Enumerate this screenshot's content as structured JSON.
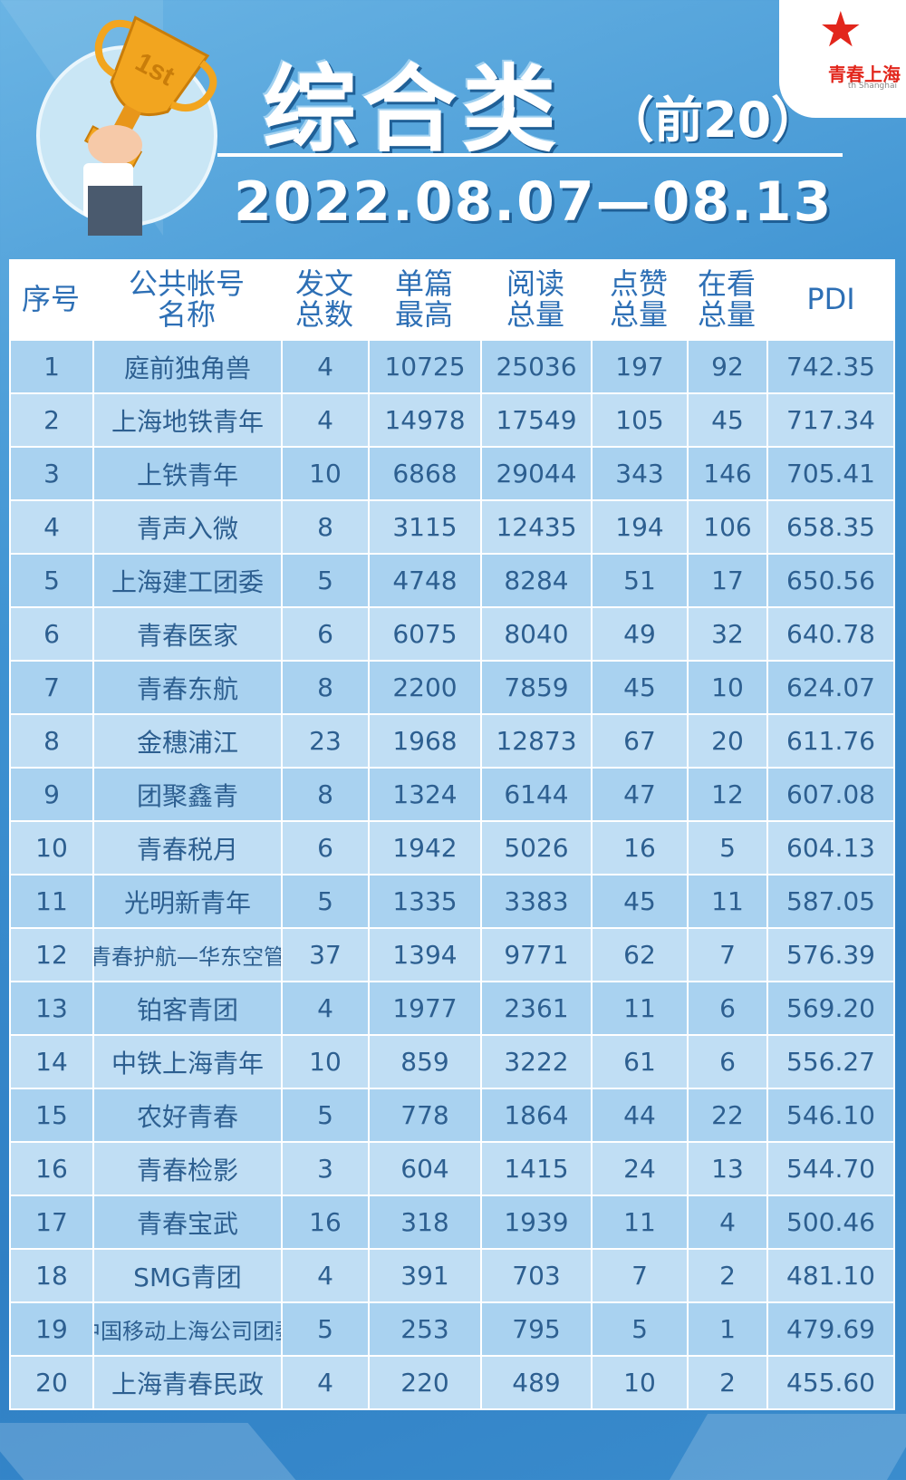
{
  "header": {
    "title": "综合类",
    "subtitle": "（前20）",
    "date_range": "2022.08.07—08.13",
    "trophy_label": "1st",
    "logo_text": "青春上海",
    "logo_sub": "th Shanghai"
  },
  "table": {
    "headers": [
      "序号",
      "公共帐号名称",
      "发文总数",
      "单篇最高",
      "阅读总量",
      "点赞总量",
      "在看总量",
      "PDI"
    ],
    "header_lines": [
      [
        "序号"
      ],
      [
        "公共帐号",
        "名称"
      ],
      [
        "发文",
        "总数"
      ],
      [
        "单篇",
        "最高"
      ],
      [
        "阅读",
        "总量"
      ],
      [
        "点赞",
        "总量"
      ],
      [
        "在看",
        "总量"
      ],
      [
        "PDI"
      ]
    ],
    "rows": [
      [
        "1",
        "庭前独角兽",
        "4",
        "10725",
        "25036",
        "197",
        "92",
        "742.35"
      ],
      [
        "2",
        "上海地铁青年",
        "4",
        "14978",
        "17549",
        "105",
        "45",
        "717.34"
      ],
      [
        "3",
        "上铁青年",
        "10",
        "6868",
        "29044",
        "343",
        "146",
        "705.41"
      ],
      [
        "4",
        "青声入微",
        "8",
        "3115",
        "12435",
        "194",
        "106",
        "658.35"
      ],
      [
        "5",
        "上海建工团委",
        "5",
        "4748",
        "8284",
        "51",
        "17",
        "650.56"
      ],
      [
        "6",
        "青春医家",
        "6",
        "6075",
        "8040",
        "49",
        "32",
        "640.78"
      ],
      [
        "7",
        "青春东航",
        "8",
        "2200",
        "7859",
        "45",
        "10",
        "624.07"
      ],
      [
        "8",
        "金穗浦江",
        "23",
        "1968",
        "12873",
        "67",
        "20",
        "611.76"
      ],
      [
        "9",
        "团聚鑫青",
        "8",
        "1324",
        "6144",
        "47",
        "12",
        "607.08"
      ],
      [
        "10",
        "青春税月",
        "6",
        "1942",
        "5026",
        "16",
        "5",
        "604.13"
      ],
      [
        "11",
        "光明新青年",
        "5",
        "1335",
        "3383",
        "45",
        "11",
        "587.05"
      ],
      [
        "12",
        "青春护航—华东空管",
        "37",
        "1394",
        "9771",
        "62",
        "7",
        "576.39"
      ],
      [
        "13",
        "铂客青团",
        "4",
        "1977",
        "2361",
        "11",
        "6",
        "569.20"
      ],
      [
        "14",
        "中铁上海青年",
        "10",
        "859",
        "3222",
        "61",
        "6",
        "556.27"
      ],
      [
        "15",
        "农好青春",
        "5",
        "778",
        "1864",
        "44",
        "22",
        "546.10"
      ],
      [
        "16",
        "青春检影",
        "3",
        "604",
        "1415",
        "24",
        "13",
        "544.70"
      ],
      [
        "17",
        "青春宝武",
        "16",
        "318",
        "1939",
        "11",
        "4",
        "500.46"
      ],
      [
        "18",
        "SMG青团",
        "4",
        "391",
        "703",
        "7",
        "2",
        "481.10"
      ],
      [
        "19",
        "中国移动上海公司团委",
        "5",
        "253",
        "795",
        "5",
        "1",
        "479.69"
      ],
      [
        "20",
        "上海青春民政",
        "4",
        "220",
        "489",
        "10",
        "2",
        "455.60"
      ]
    ]
  },
  "colors": {
    "background": "#3f93d2",
    "header_text": "#2d6fb5",
    "row_odd": "#a9d2f0",
    "row_even": "#c0def4",
    "logo_red": "#e2261c",
    "trophy_gold": "#f2a51f"
  }
}
